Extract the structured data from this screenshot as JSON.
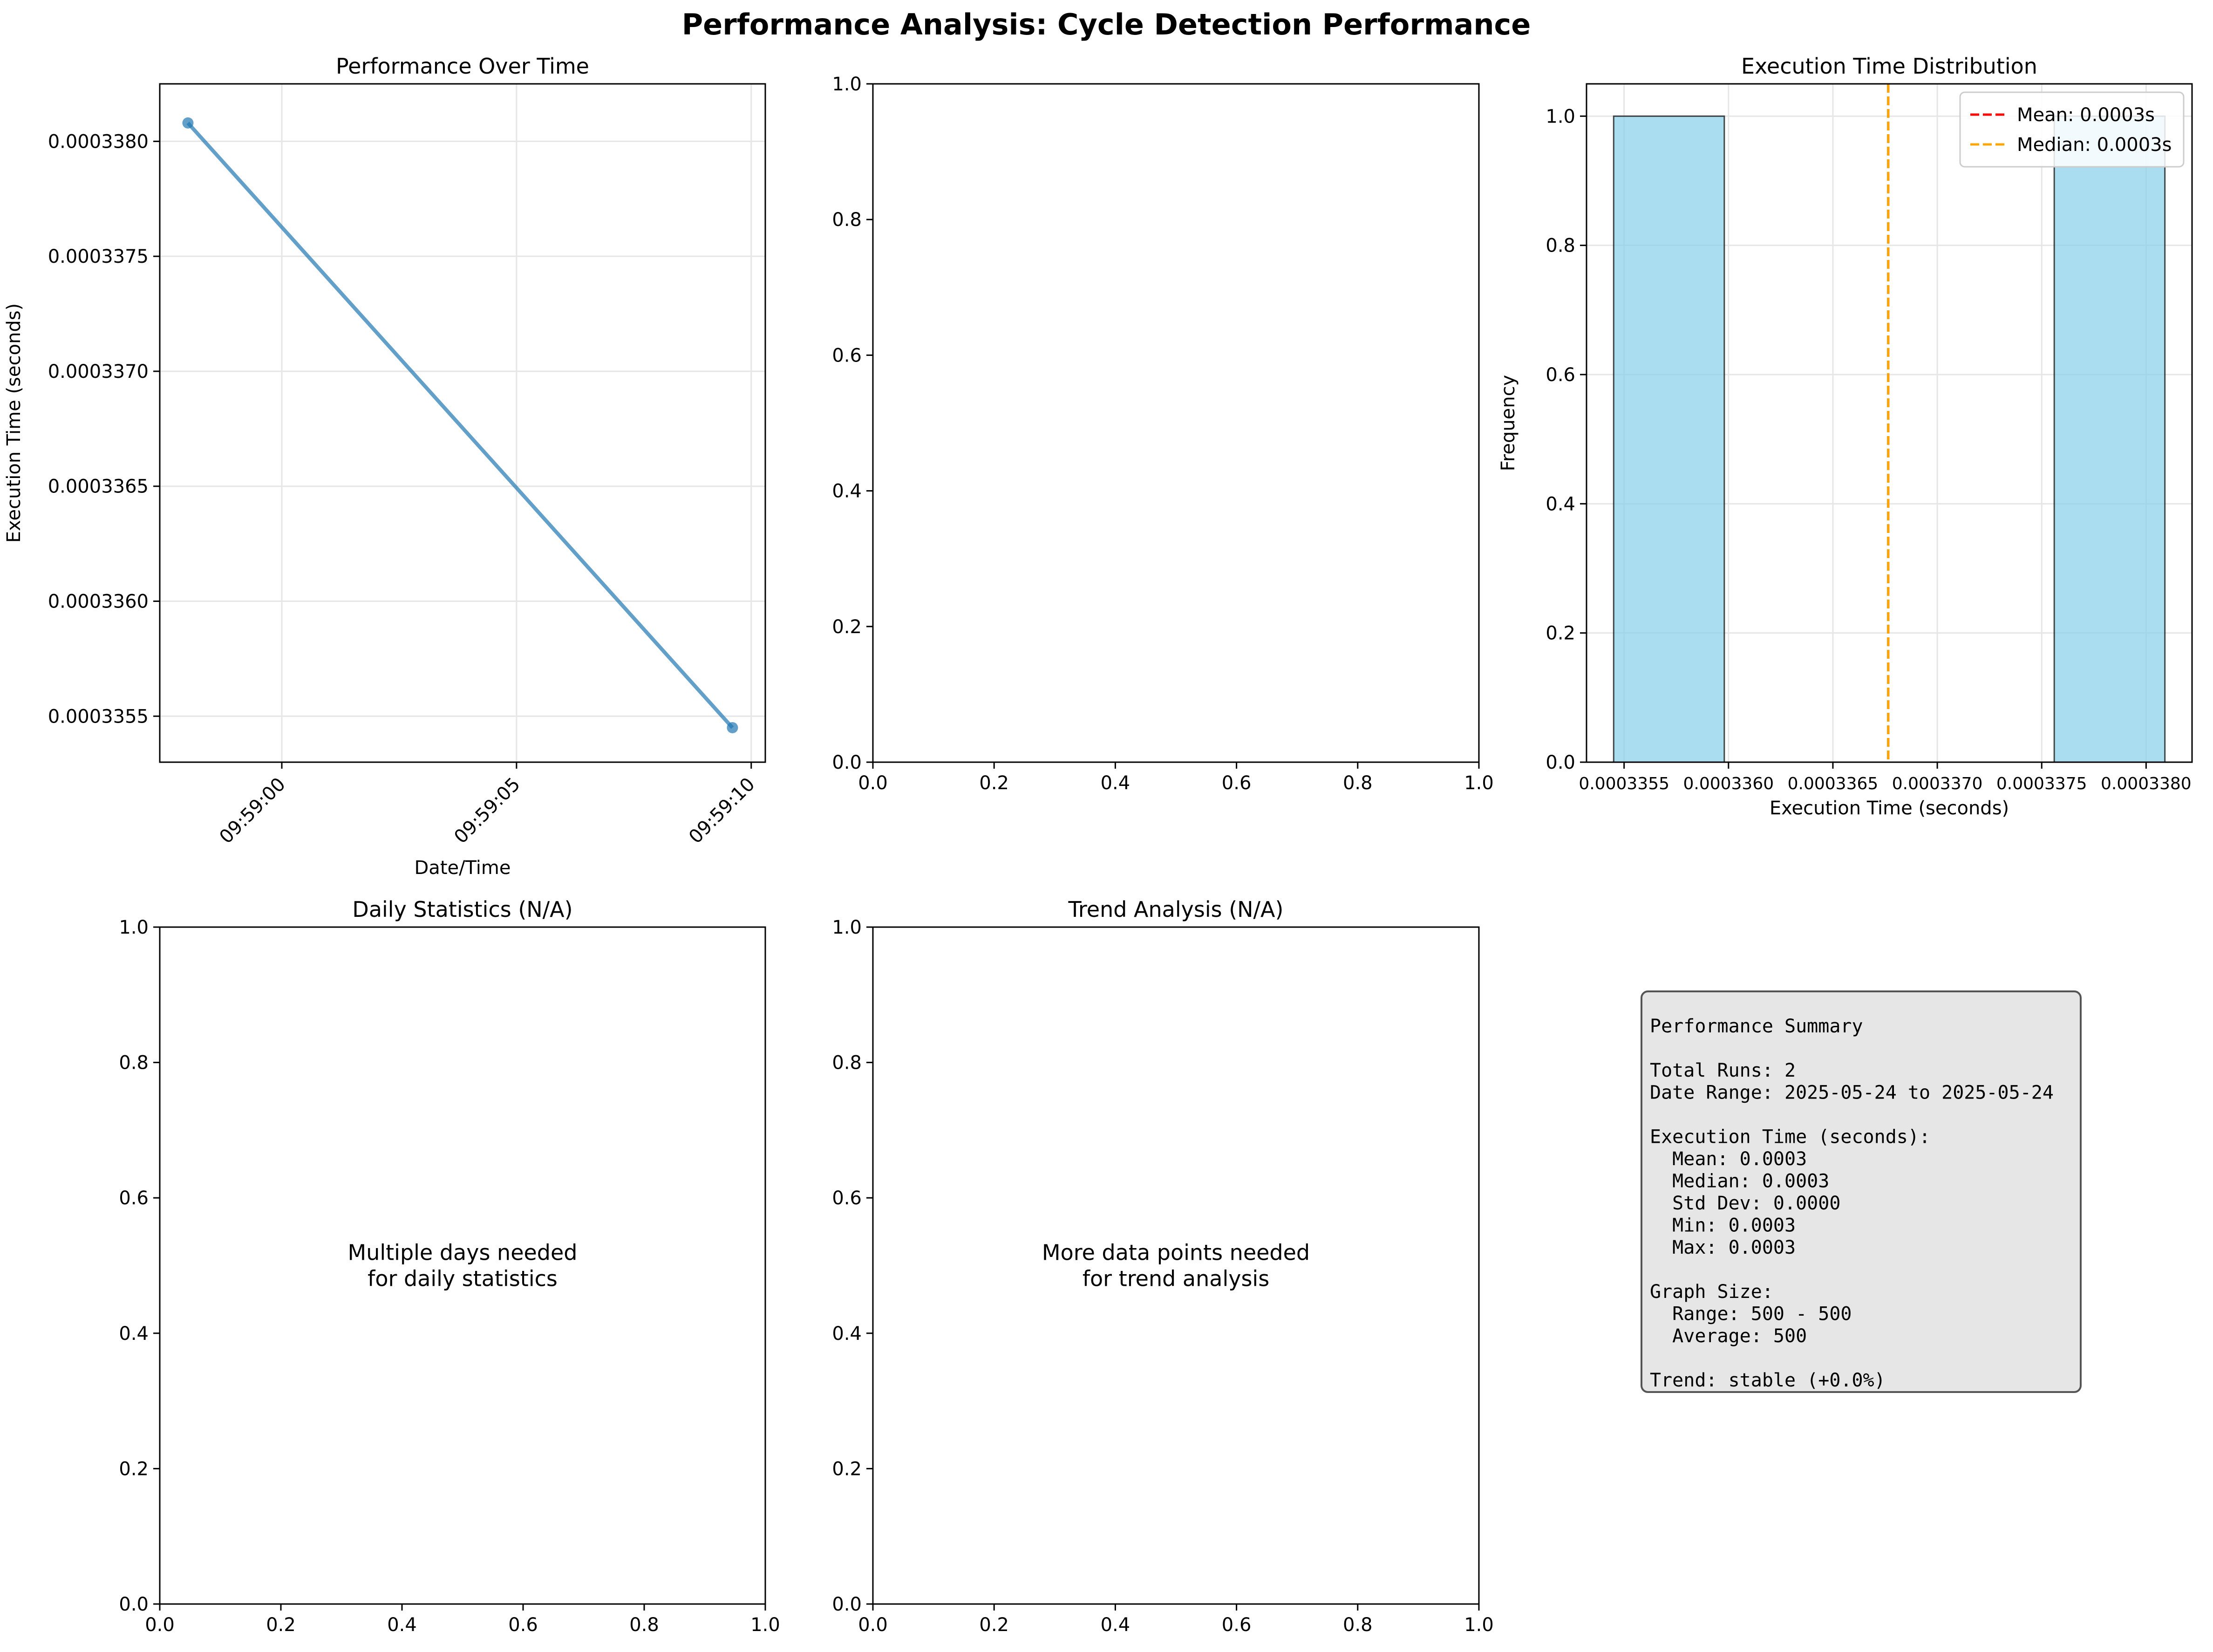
{
  "suptitle": "Performance Analysis: Cycle Detection Performance",
  "chart_data": [
    {
      "id": "performance-over-time",
      "type": "line",
      "title": "Performance Over Time",
      "xlabel": "Date/Time",
      "ylabel": "Execution Time (seconds)",
      "x_ticks": [
        "09:59:00",
        "09:59:05",
        "09:59:10"
      ],
      "x_tick_values": [
        0,
        5,
        10
      ],
      "y_ticks": [
        "0.0003355",
        "0.0003360",
        "0.0003365",
        "0.0003370",
        "0.0003375",
        "0.0003380"
      ],
      "y_tick_values": [
        0.0003355,
        0.000336,
        0.0003365,
        0.000337,
        0.0003375,
        0.000338
      ],
      "xlim": [
        -2.6,
        10.3
      ],
      "ylim": [
        0.0003353,
        0.00033825
      ],
      "grid": true,
      "series": [
        {
          "x": [
            -2.0,
            9.6
          ],
          "y": [
            0.00033808,
            0.00033545
          ],
          "color": "#1f77b4"
        }
      ],
      "x_origin_time": "09:59:00"
    },
    {
      "id": "empty-panel",
      "type": "line",
      "title": "",
      "xlabel": "",
      "ylabel": "",
      "x_ticks": [
        "0.0",
        "0.2",
        "0.4",
        "0.6",
        "0.8",
        "1.0"
      ],
      "x_tick_values": [
        0,
        0.2,
        0.4,
        0.6,
        0.8,
        1.0
      ],
      "y_ticks": [
        "0.0",
        "0.2",
        "0.4",
        "0.6",
        "0.8",
        "1.0"
      ],
      "y_tick_values": [
        0,
        0.2,
        0.4,
        0.6,
        0.8,
        1.0
      ],
      "xlim": [
        0,
        1
      ],
      "ylim": [
        0,
        1
      ],
      "grid": false,
      "series": []
    },
    {
      "id": "execution-time-distribution",
      "type": "bar",
      "title": "Execution Time Distribution",
      "xlabel": "Execution Time (seconds)",
      "ylabel": "Frequency",
      "x_ticks": [
        "0.0003355",
        "0.0003360",
        "0.0003365",
        "0.0003370",
        "0.0003375",
        "0.0003380"
      ],
      "x_tick_values": [
        0.0003355,
        0.000336,
        0.0003365,
        0.000337,
        0.0003375,
        0.000338
      ],
      "x_tick_display": [
        "0.0003355",
        "0.0003360",
        "0.0003365",
        "0.0003370",
        "0.0003375",
        "0.0003380"
      ],
      "y_ticks": [
        "0.0",
        "0.2",
        "0.4",
        "0.6",
        "0.8",
        "1.0"
      ],
      "y_tick_values": [
        0,
        0.2,
        0.4,
        0.6,
        0.8,
        1.0
      ],
      "xlim": [
        0.00033532,
        0.00033822
      ],
      "ylim": [
        0,
        1.05
      ],
      "grid": true,
      "bars": [
        {
          "x0": 0.00033545,
          "x1": 0.00033598,
          "value": 1
        },
        {
          "x0": 0.00033756,
          "x1": 0.00033809,
          "value": 1
        }
      ],
      "bar_color": "#87ceeb",
      "vlines": [
        {
          "x": 0.000336765,
          "color": "#ff0000"
        },
        {
          "x": 0.000336765,
          "color": "#ffa500"
        }
      ],
      "legend": {
        "placement": "top-right",
        "entries": [
          {
            "label": "Mean: 0.0003s",
            "color": "#ff0000"
          },
          {
            "label": "Median: 0.0003s",
            "color": "#ffa500"
          }
        ]
      }
    },
    {
      "id": "daily-statistics",
      "type": "line",
      "title": "Daily Statistics (N/A)",
      "xlabel": "",
      "ylabel": "",
      "x_ticks": [
        "0.0",
        "0.2",
        "0.4",
        "0.6",
        "0.8",
        "1.0"
      ],
      "x_tick_values": [
        0,
        0.2,
        0.4,
        0.6,
        0.8,
        1.0
      ],
      "y_ticks": [
        "0.0",
        "0.2",
        "0.4",
        "0.6",
        "0.8",
        "1.0"
      ],
      "y_tick_values": [
        0,
        0.2,
        0.4,
        0.6,
        0.8,
        1.0
      ],
      "xlim": [
        0,
        1
      ],
      "ylim": [
        0,
        1
      ],
      "grid": false,
      "series": [],
      "message": [
        "Multiple days needed",
        "for daily statistics"
      ]
    },
    {
      "id": "trend-analysis",
      "type": "line",
      "title": "Trend Analysis (N/A)",
      "xlabel": "",
      "ylabel": "",
      "x_ticks": [
        "0.0",
        "0.2",
        "0.4",
        "0.6",
        "0.8",
        "1.0"
      ],
      "x_tick_values": [
        0,
        0.2,
        0.4,
        0.6,
        0.8,
        1.0
      ],
      "y_ticks": [
        "0.0",
        "0.2",
        "0.4",
        "0.6",
        "0.8",
        "1.0"
      ],
      "y_tick_values": [
        0,
        0.2,
        0.4,
        0.6,
        0.8,
        1.0
      ],
      "xlim": [
        0,
        1
      ],
      "ylim": [
        0,
        1
      ],
      "grid": false,
      "series": [],
      "message": [
        "More data points needed",
        "for trend analysis"
      ]
    }
  ],
  "summary": {
    "lines": [
      "Performance Summary",
      "",
      "Total Runs: 2",
      "Date Range: 2025-05-24 to 2025-05-24",
      "",
      "Execution Time (seconds):",
      "  Mean: 0.0003",
      "  Median: 0.0003",
      "  Std Dev: 0.0000",
      "  Min: 0.0003",
      "  Max: 0.0003",
      "",
      "Graph Size:",
      "  Range: 500 - 500",
      "  Average: 500",
      "",
      "Trend: stable (+0.0%)"
    ]
  }
}
